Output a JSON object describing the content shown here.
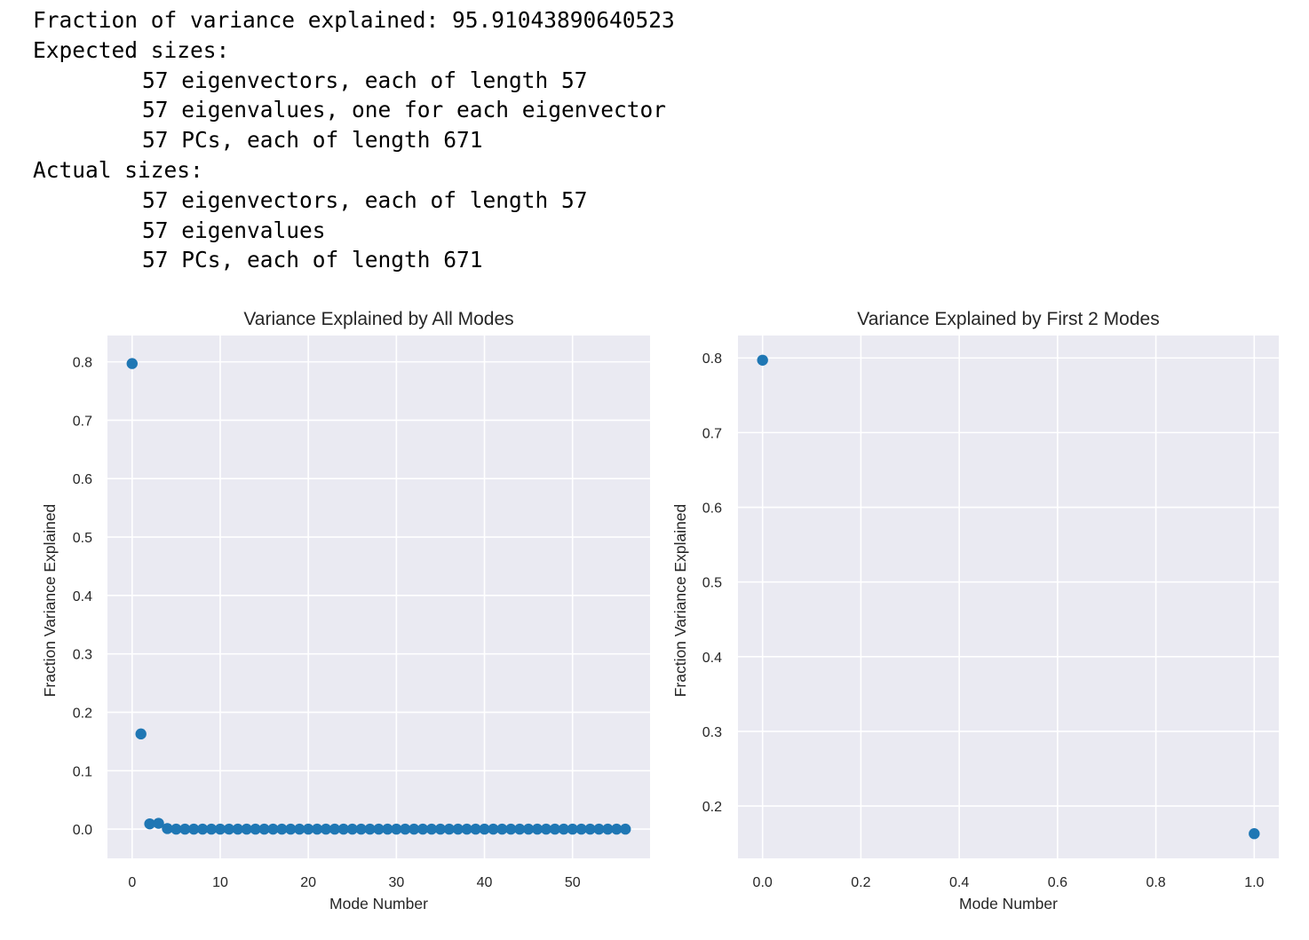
{
  "console": {
    "lines": [
      {
        "text": "Fraction of variance explained: 95.91043890640523",
        "indent": false
      },
      {
        "text": "Expected sizes:",
        "indent": false
      },
      {
        "text": "57 eigenvectors, each of length 57",
        "indent": true
      },
      {
        "text": "57 eigenvalues, one for each eigenvector",
        "indent": true
      },
      {
        "text": "57 PCs, each of length 671",
        "indent": true
      },
      {
        "text": "Actual sizes:",
        "indent": false
      },
      {
        "text": "57 eigenvectors, each of length 57",
        "indent": true
      },
      {
        "text": "57 eigenvalues",
        "indent": true
      },
      {
        "text": "57 PCs, each of length 671",
        "indent": true
      }
    ]
  },
  "colors": {
    "plot_background": "#EAEAF2",
    "grid": "#FFFFFF",
    "marker": "#1F77B4",
    "text": "#262626"
  },
  "chart_data": [
    {
      "type": "scatter",
      "title": "Variance Explained by All Modes",
      "xlabel": "Mode Number",
      "ylabel": "Fraction Variance Explained",
      "xlim": [
        -2.8,
        58.8
      ],
      "ylim": [
        -0.05,
        0.845
      ],
      "xticks": [
        0,
        10,
        20,
        30,
        40,
        50
      ],
      "xtick_labels": [
        "0",
        "10",
        "20",
        "30",
        "40",
        "50"
      ],
      "yticks": [
        0.0,
        0.1,
        0.2,
        0.3,
        0.4,
        0.5,
        0.6,
        0.7,
        0.8
      ],
      "ytick_labels": [
        "0.0",
        "0.1",
        "0.2",
        "0.3",
        "0.4",
        "0.5",
        "0.6",
        "0.7",
        "0.8"
      ],
      "grid": true,
      "x": [
        0,
        1,
        2,
        3,
        4,
        5,
        6,
        7,
        8,
        9,
        10,
        11,
        12,
        13,
        14,
        15,
        16,
        17,
        18,
        19,
        20,
        21,
        22,
        23,
        24,
        25,
        26,
        27,
        28,
        29,
        30,
        31,
        32,
        33,
        34,
        35,
        36,
        37,
        38,
        39,
        40,
        41,
        42,
        43,
        44,
        45,
        46,
        47,
        48,
        49,
        50,
        51,
        52,
        53,
        54,
        55,
        56
      ],
      "y": [
        0.797,
        0.163,
        0.009,
        0.01,
        0.001,
        0.0,
        0.0,
        0.0,
        0.0,
        0.0,
        0.0,
        0.0,
        0.0,
        0.0,
        0.0,
        0.0,
        0.0,
        0.0,
        0.0,
        0.0,
        0.0,
        0.0,
        0.0,
        0.0,
        0.0,
        0.0,
        0.0,
        0.0,
        0.0,
        0.0,
        0.0,
        0.0,
        0.0,
        0.0,
        0.0,
        0.0,
        0.0,
        0.0,
        0.0,
        0.0,
        0.0,
        0.0,
        0.0,
        0.0,
        0.0,
        0.0,
        0.0,
        0.0,
        0.0,
        0.0,
        0.0,
        0.0,
        0.0,
        0.0,
        0.0,
        0.0,
        0.0
      ]
    },
    {
      "type": "scatter",
      "title": "Variance Explained by First 2 Modes",
      "xlabel": "Mode Number",
      "ylabel": "Fraction Variance Explained",
      "xlim": [
        -0.05,
        1.05
      ],
      "ylim": [
        0.13,
        0.83
      ],
      "xticks": [
        0.0,
        0.2,
        0.4,
        0.6,
        0.8,
        1.0
      ],
      "xtick_labels": [
        "0.0",
        "0.2",
        "0.4",
        "0.6",
        "0.8",
        "1.0"
      ],
      "yticks": [
        0.2,
        0.3,
        0.4,
        0.5,
        0.6,
        0.7,
        0.8
      ],
      "ytick_labels": [
        "0.2",
        "0.3",
        "0.4",
        "0.5",
        "0.6",
        "0.7",
        "0.8"
      ],
      "grid": true,
      "x": [
        0,
        1
      ],
      "y": [
        0.797,
        0.163
      ]
    }
  ]
}
